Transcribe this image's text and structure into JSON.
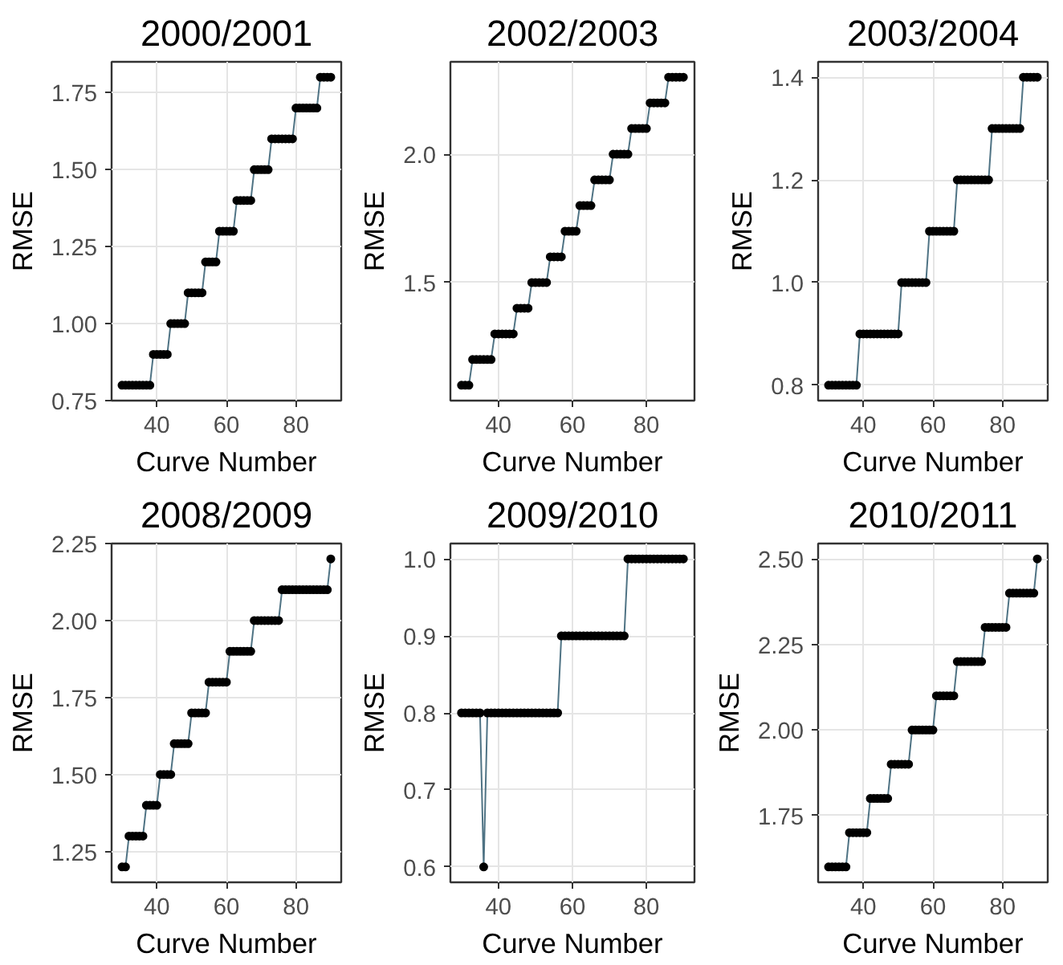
{
  "chart_data": [
    {
      "type": "scatter",
      "title": "2000/2001",
      "xlabel": "Curve Number",
      "ylabel": "RMSE",
      "xlim": [
        27,
        93
      ],
      "xticks": [
        40,
        60,
        80
      ],
      "ylim": [
        0.75,
        1.85
      ],
      "yticks": [
        {
          "value": 0.75,
          "label": "0.75"
        },
        {
          "value": 1.0,
          "label": "1.00"
        },
        {
          "value": 1.25,
          "label": "1.25"
        },
        {
          "value": 1.5,
          "label": "1.50"
        },
        {
          "value": 1.75,
          "label": "1.75"
        }
      ],
      "grid": true,
      "marker": "circle",
      "x": [
        30,
        31,
        32,
        33,
        34,
        35,
        36,
        37,
        38,
        39,
        40,
        41,
        42,
        43,
        44,
        45,
        46,
        47,
        48,
        49,
        50,
        51,
        52,
        53,
        54,
        55,
        56,
        57,
        58,
        59,
        60,
        61,
        62,
        63,
        64,
        65,
        66,
        67,
        68,
        69,
        70,
        71,
        72,
        73,
        74,
        75,
        76,
        77,
        78,
        79,
        80,
        81,
        82,
        83,
        84,
        85,
        86,
        87,
        88,
        89,
        90
      ],
      "series": [
        {
          "type": "line",
          "marker": "none",
          "color": "#4f7384",
          "values": [
            0.8,
            0.8,
            0.8,
            0.8,
            0.8,
            0.8,
            0.8,
            0.8,
            0.8,
            0.9,
            0.9,
            0.9,
            0.9,
            0.9,
            1.0,
            1.0,
            1.0,
            1.0,
            1.0,
            1.1,
            1.1,
            1.1,
            1.1,
            1.1,
            1.2,
            1.2,
            1.2,
            1.2,
            1.3,
            1.3,
            1.3,
            1.3,
            1.3,
            1.4,
            1.4,
            1.4,
            1.4,
            1.4,
            1.5,
            1.5,
            1.5,
            1.5,
            1.5,
            1.6,
            1.6,
            1.6,
            1.6,
            1.6,
            1.6,
            1.6,
            1.7,
            1.7,
            1.7,
            1.7,
            1.7,
            1.7,
            1.7,
            1.8,
            1.8,
            1.8,
            1.8
          ]
        },
        {
          "color": "#000000",
          "values": [
            0.8,
            0.8,
            0.8,
            0.8,
            0.8,
            0.8,
            0.8,
            0.8,
            0.8,
            0.9,
            0.9,
            0.9,
            0.9,
            0.9,
            1.0,
            1.0,
            1.0,
            1.0,
            1.0,
            1.1,
            1.1,
            1.1,
            1.1,
            1.1,
            1.2,
            1.2,
            1.2,
            1.2,
            1.3,
            1.3,
            1.3,
            1.3,
            1.3,
            1.4,
            1.4,
            1.4,
            1.4,
            1.4,
            1.5,
            1.5,
            1.5,
            1.5,
            1.5,
            1.6,
            1.6,
            1.6,
            1.6,
            1.6,
            1.6,
            1.6,
            1.7,
            1.7,
            1.7,
            1.7,
            1.7,
            1.7,
            1.7,
            1.8,
            1.8,
            1.8,
            1.8
          ]
        }
      ]
    },
    {
      "type": "scatter",
      "title": "2002/2003",
      "xlabel": "Curve Number",
      "ylabel": "RMSE",
      "xlim": [
        27,
        93
      ],
      "xticks": [
        40,
        60,
        80
      ],
      "ylim": [
        1.04,
        2.36
      ],
      "yticks": [
        1.5,
        {
          "value": 2.0,
          "label": "2.0"
        }
      ],
      "grid": true,
      "marker": "circle",
      "x": [
        30,
        31,
        32,
        33,
        34,
        35,
        36,
        37,
        38,
        39,
        40,
        41,
        42,
        43,
        44,
        45,
        46,
        47,
        48,
        49,
        50,
        51,
        52,
        53,
        54,
        55,
        56,
        57,
        58,
        59,
        60,
        61,
        62,
        63,
        64,
        65,
        66,
        67,
        68,
        69,
        70,
        71,
        72,
        73,
        74,
        75,
        76,
        77,
        78,
        79,
        80,
        81,
        82,
        83,
        84,
        85,
        86,
        87,
        88,
        89,
        90
      ],
      "series": [
        {
          "type": "line",
          "marker": "none",
          "color": "#4f7384",
          "values": [
            1.1,
            1.1,
            1.1,
            1.2,
            1.2,
            1.2,
            1.2,
            1.2,
            1.2,
            1.3,
            1.3,
            1.3,
            1.3,
            1.3,
            1.3,
            1.4,
            1.4,
            1.4,
            1.4,
            1.5,
            1.5,
            1.5,
            1.5,
            1.5,
            1.6,
            1.6,
            1.6,
            1.6,
            1.7,
            1.7,
            1.7,
            1.7,
            1.8,
            1.8,
            1.8,
            1.8,
            1.9,
            1.9,
            1.9,
            1.9,
            1.9,
            2.0,
            2.0,
            2.0,
            2.0,
            2.0,
            2.1,
            2.1,
            2.1,
            2.1,
            2.1,
            2.2,
            2.2,
            2.2,
            2.2,
            2.2,
            2.3,
            2.3,
            2.3,
            2.3,
            2.3
          ]
        },
        {
          "color": "#000000",
          "values": [
            1.1,
            1.1,
            1.1,
            1.2,
            1.2,
            1.2,
            1.2,
            1.2,
            1.2,
            1.3,
            1.3,
            1.3,
            1.3,
            1.3,
            1.3,
            1.4,
            1.4,
            1.4,
            1.4,
            1.5,
            1.5,
            1.5,
            1.5,
            1.5,
            1.6,
            1.6,
            1.6,
            1.6,
            1.7,
            1.7,
            1.7,
            1.7,
            1.8,
            1.8,
            1.8,
            1.8,
            1.9,
            1.9,
            1.9,
            1.9,
            1.9,
            2.0,
            2.0,
            2.0,
            2.0,
            2.0,
            2.1,
            2.1,
            2.1,
            2.1,
            2.1,
            2.2,
            2.2,
            2.2,
            2.2,
            2.2,
            2.3,
            2.3,
            2.3,
            2.3,
            2.3
          ]
        }
      ]
    },
    {
      "type": "scatter",
      "title": "2003/2004",
      "xlabel": "Curve Number",
      "ylabel": "RMSE",
      "xlim": [
        27,
        93
      ],
      "xticks": [
        40,
        60,
        80
      ],
      "ylim": [
        0.77,
        1.43
      ],
      "yticks": [
        0.8,
        {
          "value": 1.0,
          "label": "1.0"
        },
        1.2,
        1.4
      ],
      "grid": true,
      "marker": "circle",
      "x": [
        30,
        31,
        32,
        33,
        34,
        35,
        36,
        37,
        38,
        39,
        40,
        41,
        42,
        43,
        44,
        45,
        46,
        47,
        48,
        49,
        50,
        51,
        52,
        53,
        54,
        55,
        56,
        57,
        58,
        59,
        60,
        61,
        62,
        63,
        64,
        65,
        66,
        67,
        68,
        69,
        70,
        71,
        72,
        73,
        74,
        75,
        76,
        77,
        78,
        79,
        80,
        81,
        82,
        83,
        84,
        85,
        86,
        87,
        88,
        89,
        90
      ],
      "series": [
        {
          "type": "line",
          "marker": "none",
          "color": "#4f7384",
          "values": [
            0.8,
            0.8,
            0.8,
            0.8,
            0.8,
            0.8,
            0.8,
            0.8,
            0.8,
            0.9,
            0.9,
            0.9,
            0.9,
            0.9,
            0.9,
            0.9,
            0.9,
            0.9,
            0.9,
            0.9,
            0.9,
            1.0,
            1.0,
            1.0,
            1.0,
            1.0,
            1.0,
            1.0,
            1.0,
            1.1,
            1.1,
            1.1,
            1.1,
            1.1,
            1.1,
            1.1,
            1.1,
            1.2,
            1.2,
            1.2,
            1.2,
            1.2,
            1.2,
            1.2,
            1.2,
            1.2,
            1.2,
            1.3,
            1.3,
            1.3,
            1.3,
            1.3,
            1.3,
            1.3,
            1.3,
            1.3,
            1.4,
            1.4,
            1.4,
            1.4,
            1.4
          ]
        },
        {
          "color": "#000000",
          "values": [
            0.8,
            0.8,
            0.8,
            0.8,
            0.8,
            0.8,
            0.8,
            0.8,
            0.8,
            0.9,
            0.9,
            0.9,
            0.9,
            0.9,
            0.9,
            0.9,
            0.9,
            0.9,
            0.9,
            0.9,
            0.9,
            1.0,
            1.0,
            1.0,
            1.0,
            1.0,
            1.0,
            1.0,
            1.0,
            1.1,
            1.1,
            1.1,
            1.1,
            1.1,
            1.1,
            1.1,
            1.1,
            1.2,
            1.2,
            1.2,
            1.2,
            1.2,
            1.2,
            1.2,
            1.2,
            1.2,
            1.2,
            1.3,
            1.3,
            1.3,
            1.3,
            1.3,
            1.3,
            1.3,
            1.3,
            1.3,
            1.4,
            1.4,
            1.4,
            1.4,
            1.4
          ]
        }
      ]
    },
    {
      "type": "scatter",
      "title": "2008/2009",
      "xlabel": "Curve Number",
      "ylabel": "RMSE",
      "xlim": [
        27,
        93
      ],
      "xticks": [
        40,
        60,
        80
      ],
      "ylim": [
        1.15,
        2.25
      ],
      "yticks": [
        {
          "value": 1.25,
          "label": "1.25"
        },
        {
          "value": 1.5,
          "label": "1.50"
        },
        {
          "value": 1.75,
          "label": "1.75"
        },
        {
          "value": 2.0,
          "label": "2.00"
        },
        {
          "value": 2.25,
          "label": "2.25"
        }
      ],
      "grid": true,
      "marker": "circle",
      "x": [
        30,
        31,
        32,
        33,
        34,
        35,
        36,
        37,
        38,
        39,
        40,
        41,
        42,
        43,
        44,
        45,
        46,
        47,
        48,
        49,
        50,
        51,
        52,
        53,
        54,
        55,
        56,
        57,
        58,
        59,
        60,
        61,
        62,
        63,
        64,
        65,
        66,
        67,
        68,
        69,
        70,
        71,
        72,
        73,
        74,
        75,
        76,
        77,
        78,
        79,
        80,
        81,
        82,
        83,
        84,
        85,
        86,
        87,
        88,
        89,
        90
      ],
      "series": [
        {
          "type": "line",
          "marker": "none",
          "color": "#4f7384",
          "values": [
            1.2,
            1.2,
            1.3,
            1.3,
            1.3,
            1.3,
            1.3,
            1.4,
            1.4,
            1.4,
            1.4,
            1.5,
            1.5,
            1.5,
            1.5,
            1.6,
            1.6,
            1.6,
            1.6,
            1.6,
            1.7,
            1.7,
            1.7,
            1.7,
            1.7,
            1.8,
            1.8,
            1.8,
            1.8,
            1.8,
            1.8,
            1.9,
            1.9,
            1.9,
            1.9,
            1.9,
            1.9,
            1.9,
            2.0,
            2.0,
            2.0,
            2.0,
            2.0,
            2.0,
            2.0,
            2.0,
            2.1,
            2.1,
            2.1,
            2.1,
            2.1,
            2.1,
            2.1,
            2.1,
            2.1,
            2.1,
            2.1,
            2.1,
            2.1,
            2.1,
            2.2
          ]
        },
        {
          "color": "#000000",
          "values": [
            1.2,
            1.2,
            1.3,
            1.3,
            1.3,
            1.3,
            1.3,
            1.4,
            1.4,
            1.4,
            1.4,
            1.5,
            1.5,
            1.5,
            1.5,
            1.6,
            1.6,
            1.6,
            1.6,
            1.6,
            1.7,
            1.7,
            1.7,
            1.7,
            1.7,
            1.8,
            1.8,
            1.8,
            1.8,
            1.8,
            1.8,
            1.9,
            1.9,
            1.9,
            1.9,
            1.9,
            1.9,
            1.9,
            2.0,
            2.0,
            2.0,
            2.0,
            2.0,
            2.0,
            2.0,
            2.0,
            2.1,
            2.1,
            2.1,
            2.1,
            2.1,
            2.1,
            2.1,
            2.1,
            2.1,
            2.1,
            2.1,
            2.1,
            2.1,
            2.1,
            2.2
          ]
        }
      ]
    },
    {
      "type": "scatter",
      "title": "2009/2010",
      "xlabel": "Curve Number",
      "ylabel": "RMSE",
      "xlim": [
        27,
        93
      ],
      "xticks": [
        40,
        60,
        80
      ],
      "ylim": [
        0.58,
        1.02
      ],
      "yticks": [
        0.6,
        0.7,
        0.8,
        0.9,
        {
          "value": 1.0,
          "label": "1.0"
        }
      ],
      "grid": true,
      "marker": "circle",
      "x": [
        30,
        31,
        32,
        33,
        34,
        35,
        36,
        37,
        38,
        39,
        40,
        41,
        42,
        43,
        44,
        45,
        46,
        47,
        48,
        49,
        50,
        51,
        52,
        53,
        54,
        55,
        56,
        57,
        58,
        59,
        60,
        61,
        62,
        63,
        64,
        65,
        66,
        67,
        68,
        69,
        70,
        71,
        72,
        73,
        74,
        75,
        76,
        77,
        78,
        79,
        80,
        81,
        82,
        83,
        84,
        85,
        86,
        87,
        88,
        89,
        90
      ],
      "series": [
        {
          "type": "line",
          "marker": "none",
          "color": "#4f7384",
          "values": [
            0.8,
            0.8,
            0.8,
            0.8,
            0.8,
            0.8,
            0.6,
            0.8,
            0.8,
            0.8,
            0.8,
            0.8,
            0.8,
            0.8,
            0.8,
            0.8,
            0.8,
            0.8,
            0.8,
            0.8,
            0.8,
            0.8,
            0.8,
            0.8,
            0.8,
            0.8,
            0.8,
            0.9,
            0.9,
            0.9,
            0.9,
            0.9,
            0.9,
            0.9,
            0.9,
            0.9,
            0.9,
            0.9,
            0.9,
            0.9,
            0.9,
            0.9,
            0.9,
            0.9,
            0.9,
            1.0,
            1.0,
            1.0,
            1.0,
            1.0,
            1.0,
            1.0,
            1.0,
            1.0,
            1.0,
            1.0,
            1.0,
            1.0,
            1.0,
            1.0,
            1.0
          ]
        },
        {
          "color": "#000000",
          "values": [
            0.8,
            0.8,
            0.8,
            0.8,
            0.8,
            0.8,
            0.6,
            0.8,
            0.8,
            0.8,
            0.8,
            0.8,
            0.8,
            0.8,
            0.8,
            0.8,
            0.8,
            0.8,
            0.8,
            0.8,
            0.8,
            0.8,
            0.8,
            0.8,
            0.8,
            0.8,
            0.8,
            0.9,
            0.9,
            0.9,
            0.9,
            0.9,
            0.9,
            0.9,
            0.9,
            0.9,
            0.9,
            0.9,
            0.9,
            0.9,
            0.9,
            0.9,
            0.9,
            0.9,
            0.9,
            1.0,
            1.0,
            1.0,
            1.0,
            1.0,
            1.0,
            1.0,
            1.0,
            1.0,
            1.0,
            1.0,
            1.0,
            1.0,
            1.0,
            1.0,
            1.0
          ]
        }
      ]
    },
    {
      "type": "scatter",
      "title": "2010/2011",
      "xlabel": "Curve Number",
      "ylabel": "RMSE",
      "xlim": [
        27,
        93
      ],
      "xticks": [
        40,
        60,
        80
      ],
      "ylim": [
        1.555,
        2.545
      ],
      "yticks": [
        {
          "value": 1.75,
          "label": "1.75"
        },
        {
          "value": 2.0,
          "label": "2.00"
        },
        {
          "value": 2.25,
          "label": "2.25"
        },
        {
          "value": 2.5,
          "label": "2.50"
        }
      ],
      "grid": true,
      "marker": "circle",
      "x": [
        30,
        31,
        32,
        33,
        34,
        35,
        36,
        37,
        38,
        39,
        40,
        41,
        42,
        43,
        44,
        45,
        46,
        47,
        48,
        49,
        50,
        51,
        52,
        53,
        54,
        55,
        56,
        57,
        58,
        59,
        60,
        61,
        62,
        63,
        64,
        65,
        66,
        67,
        68,
        69,
        70,
        71,
        72,
        73,
        74,
        75,
        76,
        77,
        78,
        79,
        80,
        81,
        82,
        83,
        84,
        85,
        86,
        87,
        88,
        89,
        90
      ],
      "series": [
        {
          "type": "line",
          "marker": "none",
          "color": "#4f7384",
          "values": [
            1.6,
            1.6,
            1.6,
            1.6,
            1.6,
            1.6,
            1.7,
            1.7,
            1.7,
            1.7,
            1.7,
            1.7,
            1.8,
            1.8,
            1.8,
            1.8,
            1.8,
            1.8,
            1.9,
            1.9,
            1.9,
            1.9,
            1.9,
            1.9,
            2.0,
            2.0,
            2.0,
            2.0,
            2.0,
            2.0,
            2.0,
            2.1,
            2.1,
            2.1,
            2.1,
            2.1,
            2.1,
            2.2,
            2.2,
            2.2,
            2.2,
            2.2,
            2.2,
            2.2,
            2.2,
            2.3,
            2.3,
            2.3,
            2.3,
            2.3,
            2.3,
            2.3,
            2.4,
            2.4,
            2.4,
            2.4,
            2.4,
            2.4,
            2.4,
            2.4,
            2.5
          ]
        },
        {
          "color": "#000000",
          "values": [
            1.6,
            1.6,
            1.6,
            1.6,
            1.6,
            1.6,
            1.7,
            1.7,
            1.7,
            1.7,
            1.7,
            1.7,
            1.8,
            1.8,
            1.8,
            1.8,
            1.8,
            1.8,
            1.9,
            1.9,
            1.9,
            1.9,
            1.9,
            1.9,
            2.0,
            2.0,
            2.0,
            2.0,
            2.0,
            2.0,
            2.0,
            2.1,
            2.1,
            2.1,
            2.1,
            2.1,
            2.1,
            2.2,
            2.2,
            2.2,
            2.2,
            2.2,
            2.2,
            2.2,
            2.2,
            2.3,
            2.3,
            2.3,
            2.3,
            2.3,
            2.3,
            2.3,
            2.4,
            2.4,
            2.4,
            2.4,
            2.4,
            2.4,
            2.4,
            2.4,
            2.5
          ]
        }
      ]
    }
  ]
}
